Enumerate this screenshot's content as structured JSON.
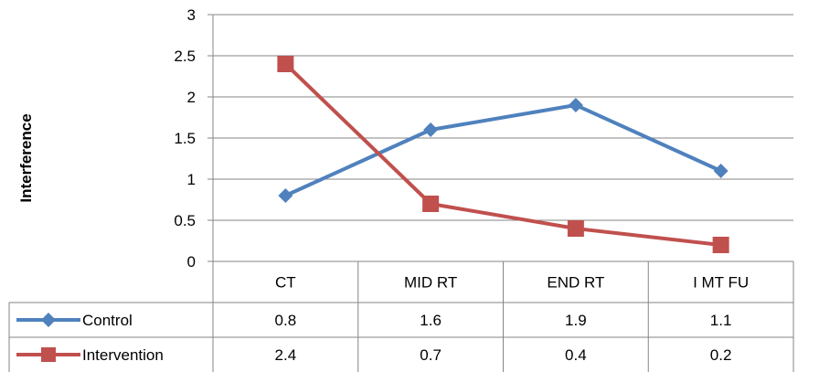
{
  "chart_data": {
    "type": "line",
    "ylabel": "Interference",
    "ylim": [
      0,
      3
    ],
    "yticks": [
      "0",
      "0.5",
      "1",
      "1.5",
      "2",
      "2.5",
      "3"
    ],
    "categories": [
      "CT",
      "MID RT",
      "END RT",
      "I MT FU"
    ],
    "series": [
      {
        "name": "Control",
        "color": "#4F81BD",
        "marker": "diamond",
        "values": [
          0.8,
          1.6,
          1.9,
          1.1
        ],
        "labels": [
          "0.8",
          "1.6",
          "1.9",
          "1.1"
        ]
      },
      {
        "name": "Intervention",
        "color": "#C0504D",
        "marker": "square",
        "values": [
          2.4,
          0.7,
          0.4,
          0.2
        ],
        "labels": [
          "2.4",
          "0.7",
          "0.4",
          "0.2"
        ]
      }
    ],
    "grid": true,
    "legend": "data-table-left",
    "data_table": true
  }
}
